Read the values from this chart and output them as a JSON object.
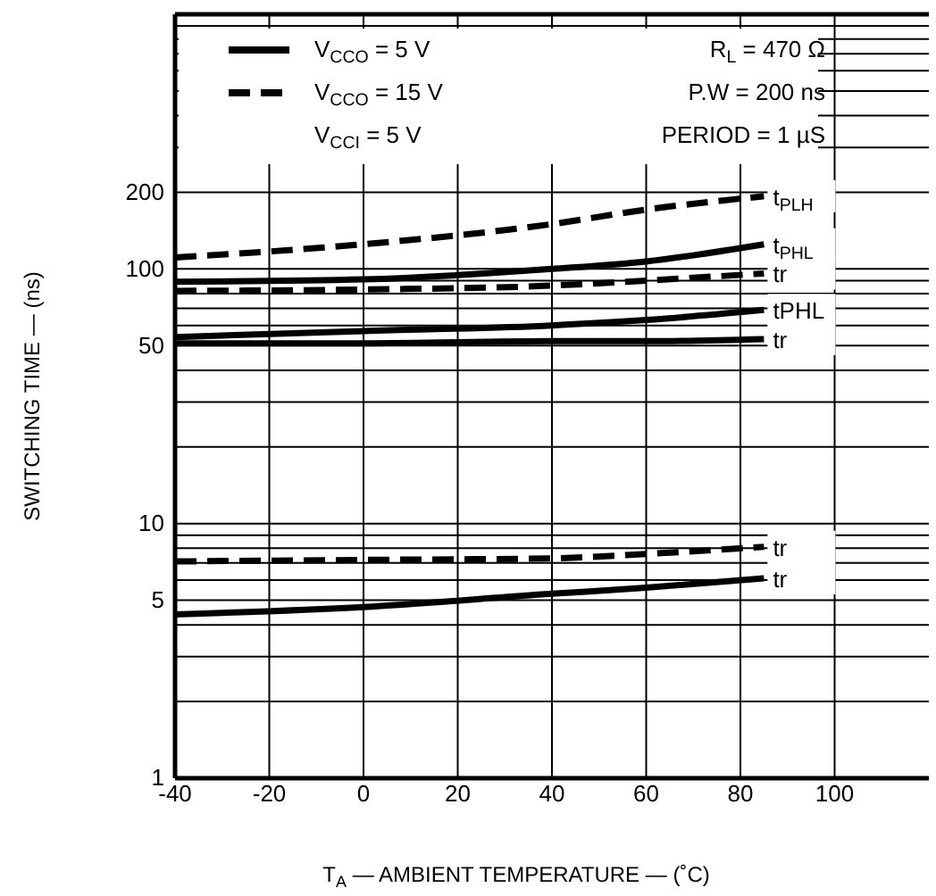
{
  "chart_data": {
    "type": "line",
    "xlabel": "T$_{A}$ — AMBIENT TEMPERATURE — (˚C)",
    "ylabel": "SWITCHING TIME — (ns)",
    "x": [
      -40,
      0,
      40,
      60,
      85
    ],
    "xlim": [
      -40,
      120
    ],
    "xticks": [
      -40,
      -20,
      0,
      20,
      40,
      60,
      80,
      100
    ],
    "ylim": [
      1,
      1000
    ],
    "log": "y",
    "yticks": [
      1,
      {
        "value": 2,
        "label": null
      },
      {
        "value": 3,
        "label": null
      },
      {
        "value": 4,
        "label": null
      },
      5,
      {
        "value": 6,
        "label": null
      },
      {
        "value": 7,
        "label": null
      },
      {
        "value": 8,
        "label": null
      },
      {
        "value": 9,
        "label": null
      },
      10,
      {
        "value": 20,
        "label": null
      },
      {
        "value": 30,
        "label": null
      },
      {
        "value": 40,
        "label": null
      },
      50,
      {
        "value": 60,
        "label": null
      },
      {
        "value": 70,
        "label": null
      },
      {
        "value": 80,
        "label": null
      },
      {
        "value": 90,
        "label": null
      },
      100,
      200,
      {
        "value": 300,
        "label": null
      },
      {
        "value": 400,
        "label": null
      },
      {
        "value": 500,
        "label": null
      },
      {
        "value": 600,
        "label": null
      },
      {
        "value": 700,
        "label": null
      },
      {
        "value": 800,
        "label": null
      },
      {
        "value": 900,
        "label": null
      },
      {
        "value": 1000,
        "label": null
      }
    ],
    "grid": true,
    "series": [
      {
        "name": "t$_{PLH}$",
        "color": "#000000",
        "line_style": "dashed",
        "values": [
          111,
          125,
          150,
          171,
          193
        ]
      },
      {
        "name": "t$_{PHL}$",
        "color": "#000000",
        "line_style": "solid",
        "values": [
          89,
          91,
          100,
          107,
          125
        ]
      },
      {
        "name": "tr",
        "color": "#000000",
        "line_style": "dashed",
        "values": [
          82,
          83,
          86,
          90,
          96
        ]
      },
      {
        "name": "tPHL",
        "color": "#000000",
        "line_style": "solid",
        "values": [
          54,
          57,
          60,
          63,
          69
        ]
      },
      {
        "name": "tr",
        "color": "#000000",
        "line_style": "solid",
        "values": [
          51,
          51,
          52,
          52,
          53
        ]
      },
      {
        "name": "tr",
        "color": "#000000",
        "line_style": "dashed",
        "values": [
          7.1,
          7.2,
          7.3,
          7.6,
          8.1
        ]
      },
      {
        "name": "tr",
        "color": "#000000",
        "line_style": "solid",
        "values": [
          4.4,
          4.7,
          5.3,
          5.6,
          6.1
        ]
      }
    ],
    "annotations": [
      "V$_{CCO}$ = 5 V",
      "V$_{CCO}$ = 15 V",
      "V$_{CCI}$  = 5 V",
      "R$_{L}$ = 470 Ω",
      "P.W = 200 ns",
      "PERIOD = 1 µS"
    ]
  }
}
